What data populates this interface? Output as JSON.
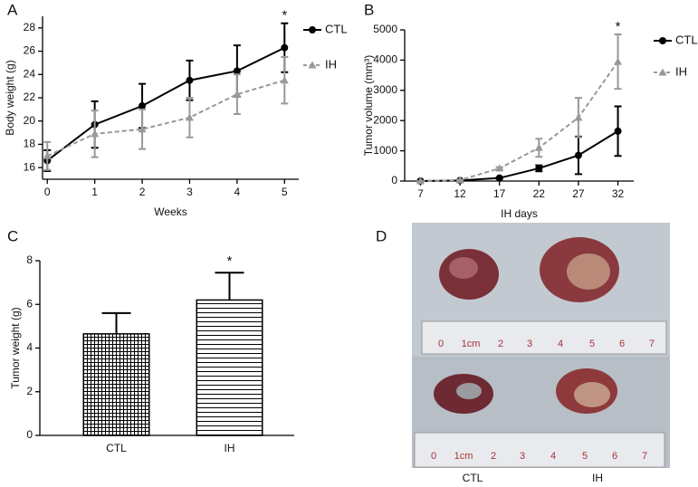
{
  "chart_data": [
    {
      "type": "line",
      "label": "A",
      "xlabel": "Weeks",
      "ylabel": "Body weight (g)",
      "x": [
        0,
        1,
        2,
        3,
        4,
        5
      ],
      "xlim": [
        -0.1,
        5.3
      ],
      "xticks": [
        0,
        1,
        2,
        3,
        4,
        5
      ],
      "ylim": [
        15,
        29
      ],
      "yticks": [
        16,
        18,
        20,
        22,
        24,
        26,
        28
      ],
      "series": [
        {
          "name": "CTL",
          "color": "#000000",
          "marker": "circle",
          "dash": false,
          "values": [
            16.6,
            19.7,
            21.3,
            23.5,
            24.3,
            26.3
          ],
          "errors": [
            0.9,
            2.0,
            1.9,
            1.7,
            2.2,
            2.1
          ]
        },
        {
          "name": "IH",
          "color": "#999999",
          "marker": "triangle",
          "dash": true,
          "values": [
            17.0,
            18.9,
            19.3,
            20.3,
            22.3,
            23.5
          ],
          "errors": [
            1.2,
            2.0,
            1.7,
            1.7,
            1.7,
            2.0
          ]
        }
      ],
      "annotations": [
        {
          "text": "*",
          "x": 5
        }
      ]
    },
    {
      "type": "line",
      "label": "B",
      "xlabel": "IH days",
      "ylabel": "Tumor volume (mm³)",
      "x": [
        7,
        12,
        17,
        22,
        27,
        32
      ],
      "xlim": [
        5,
        34
      ],
      "xticks": [
        7,
        12,
        17,
        22,
        27,
        32
      ],
      "ylim": [
        0,
        5000
      ],
      "yticks": [
        0,
        1000,
        2000,
        3000,
        4000,
        5000
      ],
      "series": [
        {
          "name": "CTL",
          "color": "#000000",
          "marker": "circle",
          "dash": false,
          "values": [
            0,
            20,
            100,
            420,
            850,
            1650
          ],
          "errors": [
            0,
            10,
            30,
            100,
            620,
            820
          ]
        },
        {
          "name": "IH",
          "color": "#999999",
          "marker": "triangle",
          "dash": true,
          "values": [
            0,
            30,
            420,
            1100,
            2100,
            3950
          ],
          "errors": [
            0,
            10,
            40,
            300,
            650,
            900
          ]
        }
      ],
      "annotations": [
        {
          "text": "*",
          "x": 32
        }
      ]
    },
    {
      "type": "bar",
      "label": "C",
      "ylabel": "Tumor weight (g)",
      "categories": [
        "CTL",
        "IH"
      ],
      "values": [
        4.65,
        6.2
      ],
      "errors": [
        0.95,
        1.25
      ],
      "patterns": [
        "crosshatch",
        "horizontal"
      ],
      "ylim": [
        0,
        8
      ],
      "yticks": [
        0,
        2,
        4,
        6,
        8
      ],
      "annotations": [
        {
          "text": "*",
          "category": 1
        }
      ]
    }
  ],
  "photo": {
    "label": "D",
    "ruler_labels": [
      "0",
      "1cm",
      "2",
      "3",
      "4",
      "5",
      "6",
      "7"
    ],
    "captions": [
      "CTL",
      "IH"
    ]
  }
}
